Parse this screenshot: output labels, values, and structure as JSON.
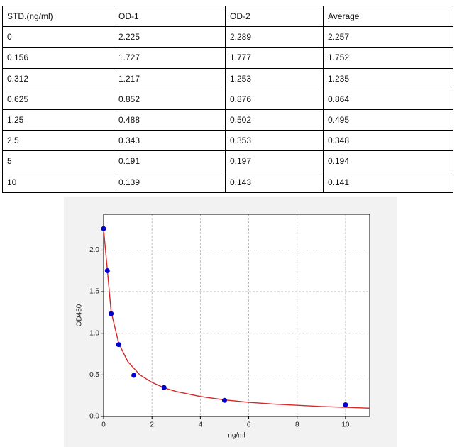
{
  "table": {
    "header": [
      "STD.(ng/ml)",
      "OD-1",
      "OD-2",
      "Average"
    ],
    "rows": [
      [
        "0",
        "2.225",
        "2.289",
        "2.257"
      ],
      [
        "0.156",
        "1.727",
        "1.777",
        "1.752"
      ],
      [
        "0.312",
        "1.217",
        "1.253",
        "1.235"
      ],
      [
        "0.625",
        "0.852",
        "0.876",
        "0.864"
      ],
      [
        "1.25",
        "0.488",
        "0.502",
        "0.495"
      ],
      [
        "2.5",
        "0.343",
        "0.353",
        "0.348"
      ],
      [
        "5",
        "0.191",
        "0.197",
        "0.194"
      ],
      [
        "10",
        "0.139",
        "0.143",
        "0.141"
      ]
    ]
  },
  "chart_data": {
    "type": "scatter",
    "x_label": "ng/ml",
    "y_label": "OD450",
    "x": [
      0,
      0.156,
      0.312,
      0.625,
      1.25,
      2.5,
      5,
      10
    ],
    "values": [
      2.257,
      1.752,
      1.235,
      0.864,
      0.495,
      0.348,
      0.194,
      0.141
    ],
    "color": "#0000cc",
    "fit": {
      "type": "line",
      "color": "#d62728",
      "x": [
        0,
        0.156,
        0.312,
        0.625,
        1,
        1.5,
        2,
        2.5,
        3,
        4,
        5,
        6,
        7,
        8,
        9,
        10,
        11
      ],
      "values": [
        2.25,
        1.76,
        1.26,
        0.88,
        0.66,
        0.5,
        0.41,
        0.345,
        0.3,
        0.24,
        0.2,
        0.17,
        0.15,
        0.135,
        0.12,
        0.11,
        0.1
      ]
    },
    "xlim": [
      0,
      11
    ],
    "ylim": [
      0,
      2.43
    ],
    "xticks": [
      0,
      2,
      4,
      6,
      8,
      10
    ],
    "yticks": [
      {
        "value": 0,
        "label": "0.0"
      },
      {
        "value": 0.5,
        "label": "0.5"
      },
      {
        "value": 1,
        "label": "1.0"
      },
      {
        "value": 1.5,
        "label": "1.5"
      },
      {
        "value": 2,
        "label": "2.0"
      }
    ],
    "grid": true
  }
}
